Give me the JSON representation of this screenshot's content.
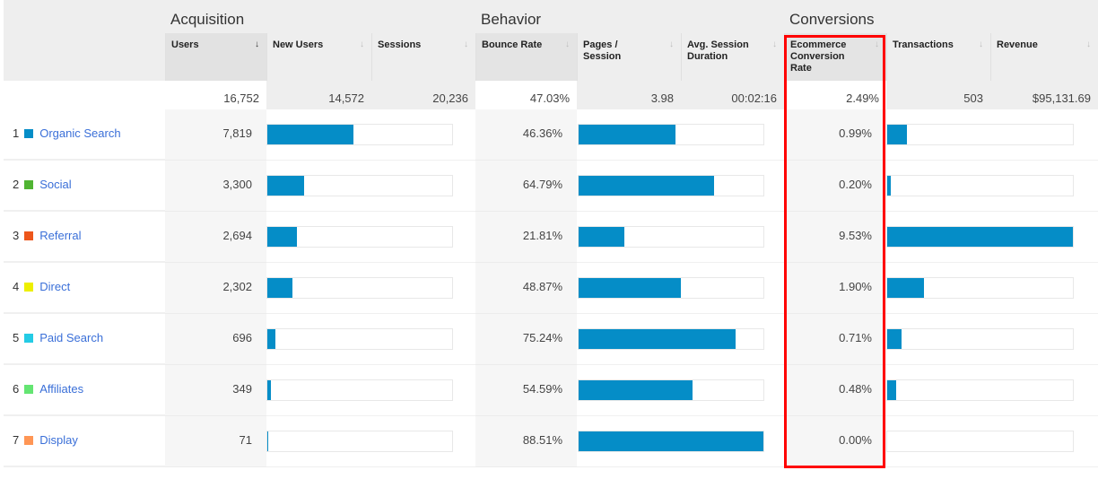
{
  "groups": {
    "acquisition": "Acquisition",
    "behavior": "Behavior",
    "conversions": "Conversions"
  },
  "columns": {
    "users": "Users",
    "new_users": "New Users",
    "sessions": "Sessions",
    "bounce_rate": "Bounce Rate",
    "pages_session": "Pages / Session",
    "avg_duration": "Avg. Session Duration",
    "ecom_rate": "Ecommerce Conversion Rate",
    "transactions": "Transactions",
    "revenue": "Revenue"
  },
  "totals": {
    "users": "16,752",
    "new_users": "14,572",
    "sessions": "20,236",
    "bounce_rate": "47.03%",
    "pages_session": "3.98",
    "avg_duration": "00:02:16",
    "ecom_rate": "2.49%",
    "transactions": "503",
    "revenue": "$95,131.69"
  },
  "bar_color": "#058dc7",
  "highlight_color": "#ff0000",
  "rows": [
    {
      "rank": "1",
      "channel": "Organic Search",
      "color": "#058dc7",
      "users": "7,819",
      "users_pct": 46.7,
      "bounce_rate": "46.36%",
      "bounce_bar": 52.4,
      "ecom_rate": "0.99%",
      "ecom_bar": 10.4
    },
    {
      "rank": "2",
      "channel": "Social",
      "color": "#50b432",
      "users": "3,300",
      "users_pct": 19.7,
      "bounce_rate": "64.79%",
      "bounce_bar": 73.2,
      "ecom_rate": "0.20%",
      "ecom_bar": 2.1
    },
    {
      "rank": "3",
      "channel": "Referral",
      "color": "#ed561b",
      "users": "2,694",
      "users_pct": 16.1,
      "bounce_rate": "21.81%",
      "bounce_bar": 24.6,
      "ecom_rate": "9.53%",
      "ecom_bar": 100
    },
    {
      "rank": "4",
      "channel": "Direct",
      "color": "#edef00",
      "users": "2,302",
      "users_pct": 13.7,
      "bounce_rate": "48.87%",
      "bounce_bar": 55.2,
      "ecom_rate": "1.90%",
      "ecom_bar": 19.9
    },
    {
      "rank": "5",
      "channel": "Paid Search",
      "color": "#24cbe5",
      "users": "696",
      "users_pct": 4.2,
      "bounce_rate": "75.24%",
      "bounce_bar": 85.0,
      "ecom_rate": "0.71%",
      "ecom_bar": 7.5
    },
    {
      "rank": "6",
      "channel": "Affiliates",
      "color": "#64e572",
      "users": "349",
      "users_pct": 2.1,
      "bounce_rate": "54.59%",
      "bounce_bar": 61.7,
      "ecom_rate": "0.48%",
      "ecom_bar": 5.0
    },
    {
      "rank": "7",
      "channel": "Display",
      "color": "#ff9655",
      "users": "71",
      "users_pct": 0.4,
      "bounce_rate": "88.51%",
      "bounce_bar": 100,
      "ecom_rate": "0.00%",
      "ecom_bar": 0
    }
  ]
}
